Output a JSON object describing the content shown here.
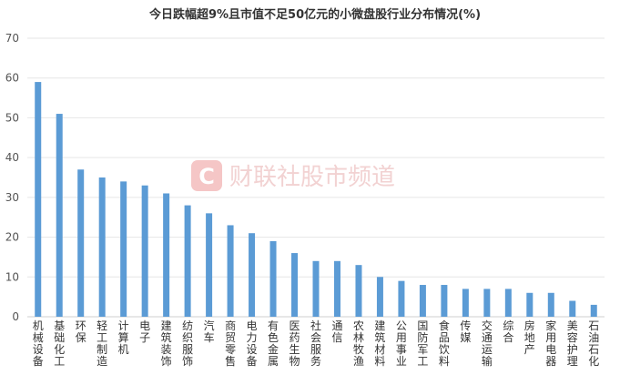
{
  "chart_data": {
    "type": "bar",
    "title": "今日跌幅超9%且市值不足50亿元的小微盘股行业分布情况(%)",
    "categories": [
      "机械设备",
      "基础化工",
      "环保",
      "轻工制造",
      "计算机",
      "电子",
      "建筑装饰",
      "纺织服饰",
      "汽车",
      "商贸零售",
      "电力设备",
      "有色金属",
      "医药生物",
      "社会服务",
      "通信",
      "农林牧渔",
      "建筑材料",
      "公用事业",
      "国防军工",
      "食品饮料",
      "传媒",
      "交通运输",
      "综合",
      "房地产",
      "家用电器",
      "美容护理",
      "石油石化"
    ],
    "values": [
      59,
      51,
      37,
      35,
      34,
      33,
      31,
      28,
      26,
      23,
      21,
      19,
      16,
      14,
      14,
      13,
      10,
      9,
      8,
      8,
      7,
      7,
      7,
      6,
      6,
      4,
      3
    ],
    "ylim": [
      0,
      70
    ],
    "yticks": [
      0,
      10,
      20,
      30,
      40,
      50,
      60,
      70
    ],
    "grid": true,
    "xlabel": "",
    "ylabel": "",
    "bar_color": "#5b9bd5",
    "grid_color": "#e6e6e6"
  },
  "watermark": {
    "text": "财联社股市频道",
    "logo_letter": "C",
    "logo_color": "#f5c6c6"
  }
}
